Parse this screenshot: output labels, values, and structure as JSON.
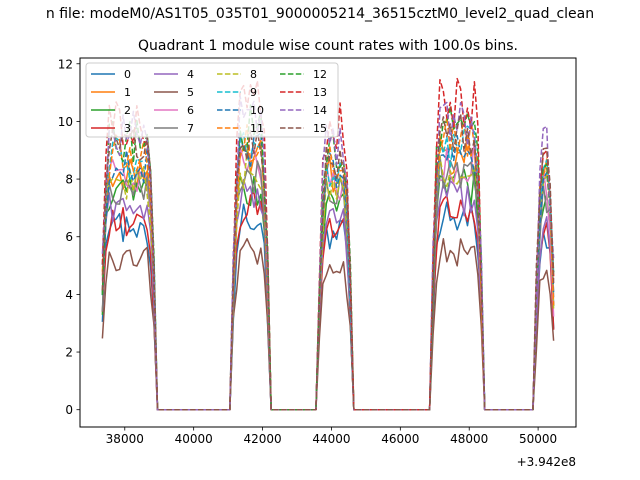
{
  "figure": {
    "suptitle": "n file: modeM0/AS1T05_035T01_9000005214_36515cztM0_level2_quad_clean"
  },
  "chart_data": {
    "type": "line",
    "title": "Quadrant 1 module wise count rates with 100.0s bins.",
    "xlabel": "",
    "ylabel": "",
    "x_offset_label": "+3.942e8",
    "xlim": [
      36700,
      51100
    ],
    "ylim": [
      -0.6,
      12.2
    ],
    "x_ticks": [
      38000,
      40000,
      42000,
      44000,
      46000,
      48000,
      50000
    ],
    "x_tick_labels": [
      "38000",
      "40000",
      "42000",
      "44000",
      "46000",
      "48000",
      "50000"
    ],
    "y_ticks": [
      0,
      2,
      4,
      6,
      8,
      10,
      12
    ],
    "y_tick_labels": [
      "0",
      "2",
      "4",
      "6",
      "8",
      "10",
      "12"
    ],
    "grid": false,
    "legend": {
      "placement": "top-left",
      "columns": 4
    },
    "x_range": {
      "start": 37350,
      "end": 50450,
      "step": 100
    },
    "segments": [
      {
        "start": 37350,
        "end": 38850,
        "scale": 1.0
      },
      {
        "start": 41150,
        "end": 42150,
        "scale": 1.05
      },
      {
        "start": 43650,
        "end": 44550,
        "scale": 0.97
      },
      {
        "start": 46950,
        "end": 48350,
        "scale": 1.05
      },
      {
        "start": 49950,
        "end": 50450,
        "scale": 0.95
      }
    ],
    "series": [
      {
        "name": "0",
        "color": "#1f77b4",
        "dash": "solid",
        "base": 6.3
      },
      {
        "name": "1",
        "color": "#ff7f0e",
        "dash": "solid",
        "base": 8.4
      },
      {
        "name": "2",
        "color": "#2ca02c",
        "dash": "solid",
        "base": 7.4
      },
      {
        "name": "3",
        "color": "#d62728",
        "dash": "solid",
        "base": 6.6
      },
      {
        "name": "4",
        "color": "#9467bd",
        "dash": "solid",
        "base": 7.0
      },
      {
        "name": "5",
        "color": "#8c564b",
        "dash": "solid",
        "base": 5.2
      },
      {
        "name": "6",
        "color": "#e377c2",
        "dash": "solid",
        "base": 8.2
      },
      {
        "name": "7",
        "color": "#7f7f7f",
        "dash": "solid",
        "base": 7.8
      },
      {
        "name": "8",
        "color": "#bcbd22",
        "dash": "dashed",
        "base": 8.0
      },
      {
        "name": "9",
        "color": "#17becf",
        "dash": "dashed",
        "base": 8.7
      },
      {
        "name": "10",
        "color": "#1f77b4",
        "dash": "dashed",
        "base": 8.5
      },
      {
        "name": "11",
        "color": "#ff7f0e",
        "dash": "dashed",
        "base": 8.9
      },
      {
        "name": "12",
        "color": "#2ca02c",
        "dash": "dashed",
        "base": 9.3
      },
      {
        "name": "13",
        "color": "#d62728",
        "dash": "dashed",
        "base": 10.1
      },
      {
        "name": "14",
        "color": "#9467bd",
        "dash": "dashed",
        "base": 9.5
      },
      {
        "name": "15",
        "color": "#8c564b",
        "dash": "dashed",
        "base": 9.0
      }
    ]
  }
}
